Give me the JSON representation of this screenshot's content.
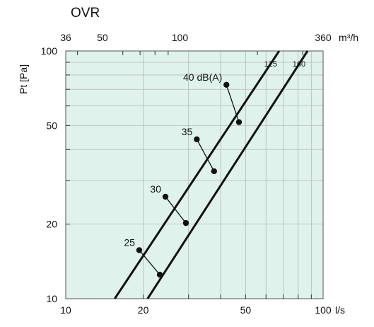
{
  "chart_data": {
    "type": "line",
    "title": "OVR",
    "xlabel": "",
    "ylabel": "Pt [Pa]",
    "x_unit": "l/s",
    "x2_unit": "m³/h",
    "x_scale": "log",
    "y_scale": "log",
    "xlim": [
      10,
      100
    ],
    "ylim": [
      10,
      100
    ],
    "grid": true,
    "background": "#dff2ec",
    "line_color": "#111111",
    "x_ticks": [
      10,
      20,
      50,
      100
    ],
    "y_ticks": [
      10,
      20,
      50,
      100
    ],
    "x2_ticks": [
      36,
      50,
      100,
      360
    ],
    "series": [
      {
        "name": "125",
        "x": [
          15.5,
          67.5
        ],
        "y": [
          10,
          100
        ]
      },
      {
        "name": "160",
        "x": [
          20.8,
          87.0
        ],
        "y": [
          10,
          100
        ]
      }
    ],
    "level_markers": [
      {
        "label": "25",
        "points": [
          {
            "x": 19.3,
            "y": 15.7
          },
          {
            "x": 23.2,
            "y": 12.5
          }
        ]
      },
      {
        "label": "30",
        "points": [
          {
            "x": 24.4,
            "y": 25.8
          },
          {
            "x": 29.3,
            "y": 20.2
          }
        ]
      },
      {
        "label": "35",
        "points": [
          {
            "x": 32.3,
            "y": 44.0
          },
          {
            "x": 37.7,
            "y": 32.7
          }
        ]
      },
      {
        "label": "40 dB(A)",
        "points": [
          {
            "x": 42.1,
            "y": 73.0
          },
          {
            "x": 47.1,
            "y": 51.6
          }
        ]
      }
    ]
  }
}
